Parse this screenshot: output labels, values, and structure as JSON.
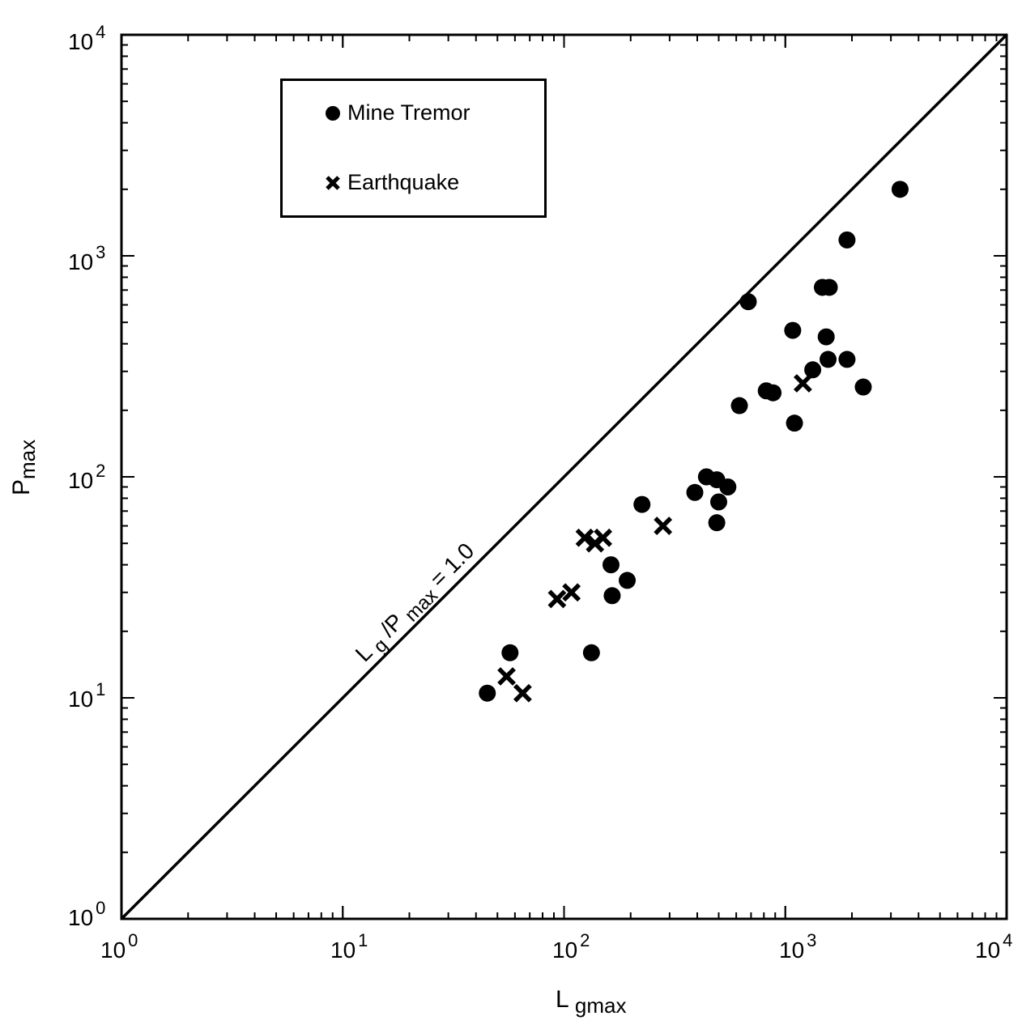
{
  "chart_data": {
    "type": "scatter",
    "xscale": "log",
    "yscale": "log",
    "xlim": [
      1,
      10000
    ],
    "ylim": [
      1,
      10000
    ],
    "xlabel": "L gmax",
    "ylabel": "Pmax",
    "x_ticks": [
      {
        "base": "10",
        "exp": "0"
      },
      {
        "base": "10",
        "exp": "1"
      },
      {
        "base": "10",
        "exp": "2"
      },
      {
        "base": "10",
        "exp": "3"
      },
      {
        "base": "10",
        "exp": "4"
      }
    ],
    "y_ticks": [
      {
        "base": "10",
        "exp": "0"
      },
      {
        "base": "10",
        "exp": "1"
      },
      {
        "base": "10",
        "exp": "2"
      },
      {
        "base": "10",
        "exp": "3"
      },
      {
        "base": "10",
        "exp": "4"
      }
    ],
    "reference_line": {
      "label": "L g / P max = 1.0",
      "ratio": 1.0
    },
    "legend": {
      "placement": "top-left"
    },
    "series": [
      {
        "name": "Mine Tremor",
        "marker": "circle",
        "points": [
          [
            45,
            10.5
          ],
          [
            57,
            16
          ],
          [
            133,
            16
          ],
          [
            165,
            29
          ],
          [
            163,
            40
          ],
          [
            193,
            34
          ],
          [
            225,
            75
          ],
          [
            390,
            85
          ],
          [
            440,
            100
          ],
          [
            490,
            97
          ],
          [
            550,
            90
          ],
          [
            500,
            77
          ],
          [
            490,
            62
          ],
          [
            620,
            210
          ],
          [
            680,
            620
          ],
          [
            820,
            245
          ],
          [
            880,
            240
          ],
          [
            1080,
            460
          ],
          [
            1100,
            175
          ],
          [
            1330,
            305
          ],
          [
            1470,
            720
          ],
          [
            1580,
            720
          ],
          [
            1530,
            430
          ],
          [
            1560,
            340
          ],
          [
            1900,
            340
          ],
          [
            1900,
            1180
          ],
          [
            2250,
            255
          ],
          [
            3300,
            2000
          ]
        ]
      },
      {
        "name": "Earthquake",
        "marker": "x",
        "points": [
          [
            55,
            12.5
          ],
          [
            65,
            10.5
          ],
          [
            93,
            28
          ],
          [
            108,
            30
          ],
          [
            124,
            53
          ],
          [
            138,
            50
          ],
          [
            150,
            53
          ],
          [
            280,
            60
          ],
          [
            1200,
            265
          ]
        ]
      }
    ]
  }
}
